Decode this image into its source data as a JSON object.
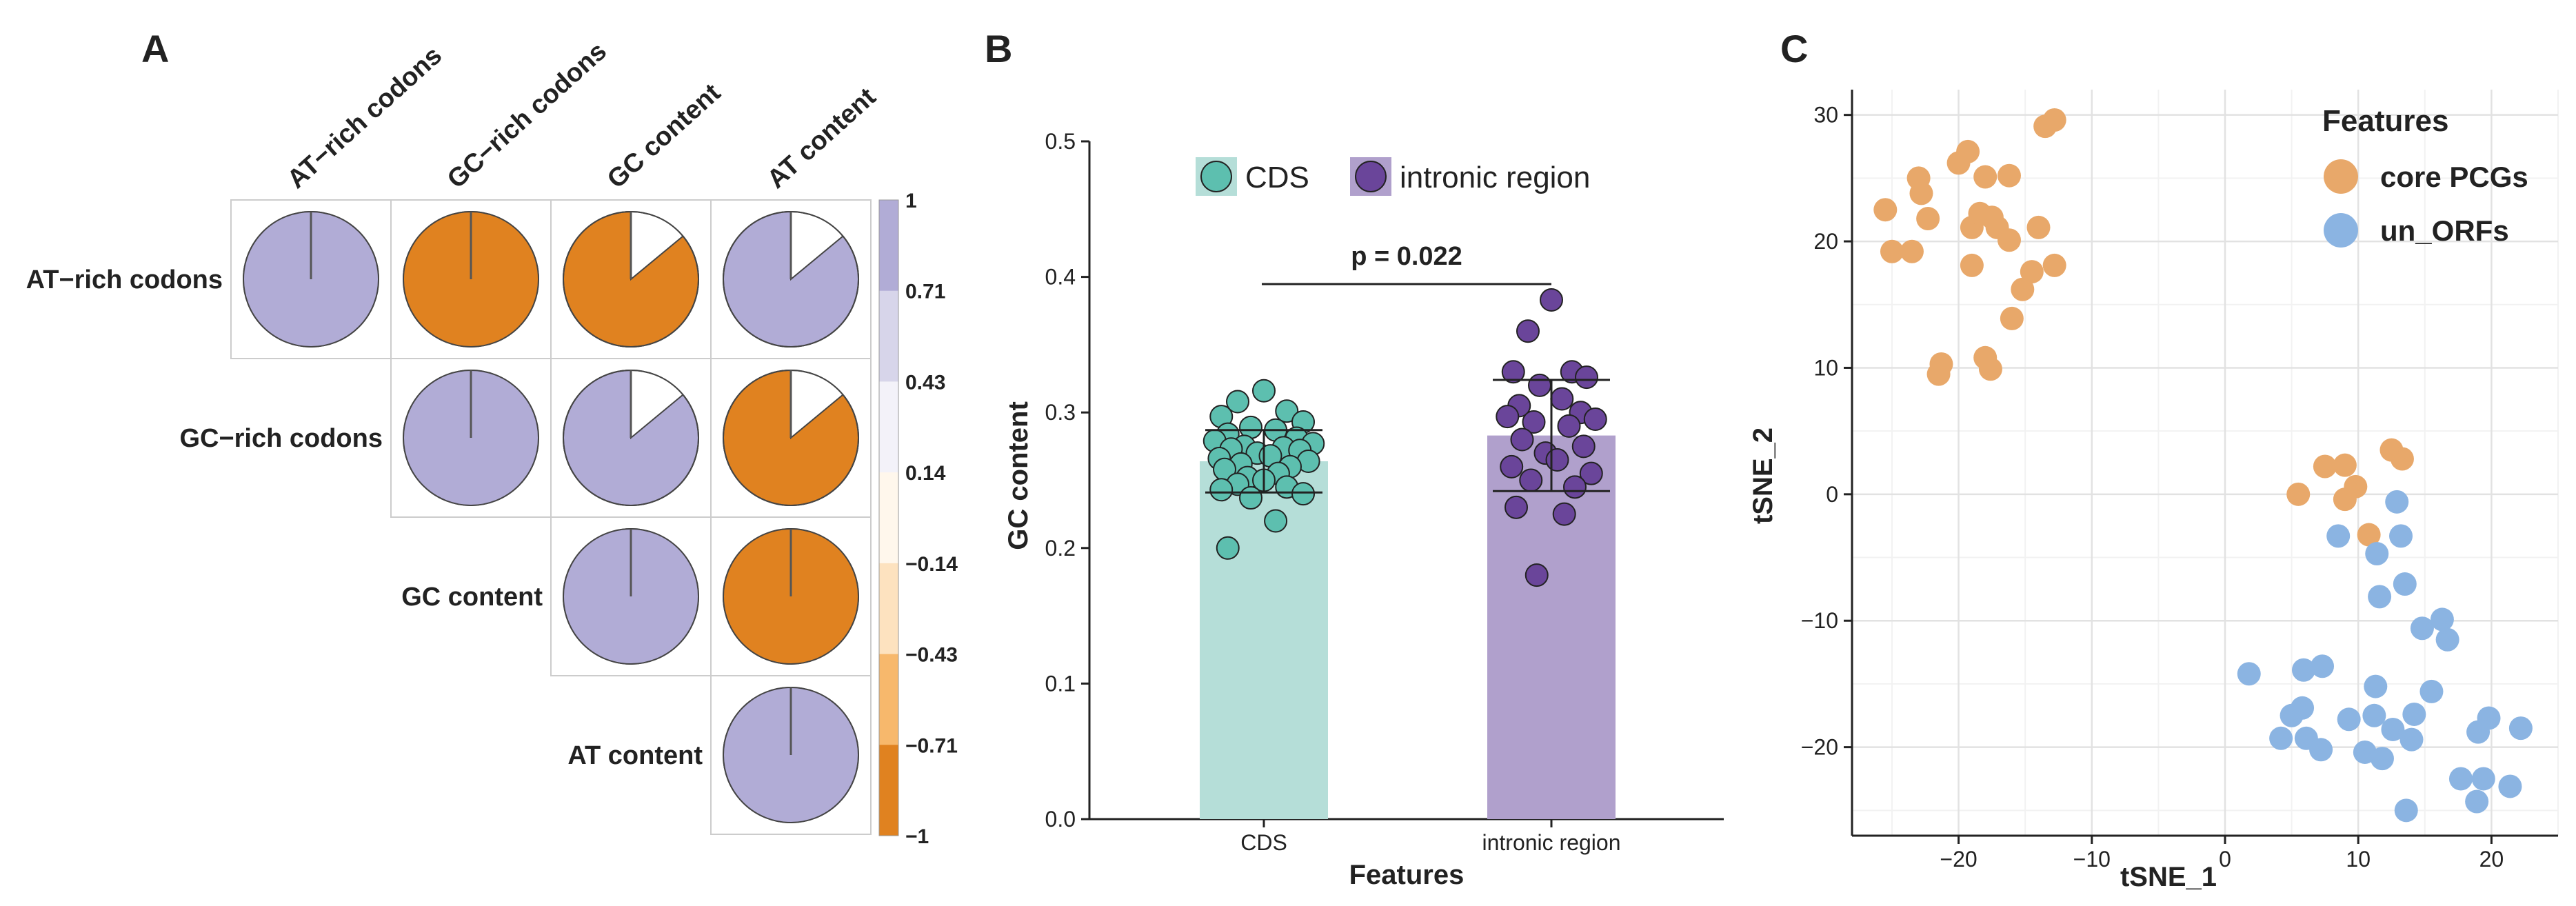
{
  "panel_labels": {
    "a": "A",
    "b": "B",
    "c": "C"
  },
  "colors": {
    "purple": "#b1acd6",
    "orange": "#e08220",
    "cds_bar": "#b5ded8",
    "cds_point": "#5dbfaf",
    "intronic_bar": "#b0a0cc",
    "intronic_point": "#6a459a",
    "core_pcgs": "#e8a86a",
    "un_orfs": "#8bb4e2"
  },
  "chart_data": [
    {
      "type": "heatmap",
      "title": "",
      "variables": [
        "AT−rich codons",
        "GC−rich codons",
        "GC content",
        "AT content"
      ],
      "correlations": [
        [
          1,
          -1,
          -0.86,
          0.86
        ],
        [
          -1,
          1,
          0.86,
          -0.86
        ],
        [
          -0.86,
          0.86,
          1,
          -1
        ],
        [
          0.86,
          -0.86,
          -1,
          1
        ]
      ],
      "colorbar": {
        "ticks": [
          "1",
          "0.71",
          "0.43",
          "0.14",
          "−0.14",
          "−0.43",
          "−0.71",
          "−1"
        ],
        "colors": [
          "#b1acd6",
          "#d7d5ea",
          "#f3f2f9",
          "#fff7ec",
          "#fde2bf",
          "#f7b86c",
          "#e08220"
        ]
      }
    },
    {
      "type": "bar",
      "categories": [
        "CDS",
        "intronic region"
      ],
      "values": [
        0.264,
        0.283
      ],
      "sd": [
        0.023,
        0.041
      ],
      "ylabel": "GC content",
      "xlabel": "Features",
      "ylim": [
        0,
        0.5
      ],
      "yticks": [
        "0.0",
        "0.1",
        "0.2",
        "0.3",
        "0.4",
        "0.5"
      ],
      "legend": [
        "CDS",
        "intronic region"
      ],
      "legend_position": "top",
      "annotation": "p = 0.022",
      "points": {
        "CDS": [
          0.316,
          0.308,
          0.301,
          0.297,
          0.293,
          0.289,
          0.287,
          0.284,
          0.281,
          0.279,
          0.277,
          0.275,
          0.274,
          0.273,
          0.272,
          0.27,
          0.268,
          0.266,
          0.264,
          0.262,
          0.26,
          0.258,
          0.255,
          0.252,
          0.25,
          0.247,
          0.245,
          0.243,
          0.24,
          0.237,
          0.22,
          0.2
        ],
        "intronic region": [
          0.383,
          0.36,
          0.33,
          0.33,
          0.326,
          0.32,
          0.31,
          0.305,
          0.3,
          0.297,
          0.295,
          0.293,
          0.29,
          0.28,
          0.275,
          0.27,
          0.265,
          0.26,
          0.255,
          0.25,
          0.245,
          0.23,
          0.225,
          0.18
        ]
      }
    },
    {
      "type": "scatter",
      "xlabel": "tSNE_1",
      "ylabel": "tSNE_2",
      "xlim": [
        -28,
        25
      ],
      "ylim": [
        -27,
        32
      ],
      "xticks": [
        "−20",
        "−10",
        "0",
        "10",
        "20"
      ],
      "yticks": [
        "30",
        "20",
        "10",
        "0",
        "−10",
        "−20"
      ],
      "grid": true,
      "legend_title": "Features",
      "legend_position": "top-right",
      "series": [
        {
          "name": "core PCGs",
          "points": [
            [
              -25.5,
              22.5
            ],
            [
              -25,
              19.2
            ],
            [
              -23.5,
              19.2
            ],
            [
              -23,
              25
            ],
            [
              -22.8,
              23.8
            ],
            [
              -22.3,
              21.8
            ],
            [
              -21.5,
              9.5
            ],
            [
              -21.3,
              10.3
            ],
            [
              -20,
              26.2
            ],
            [
              -19.3,
              27.1
            ],
            [
              -19,
              21.1
            ],
            [
              -19,
              18.1
            ],
            [
              -18.4,
              22.2
            ],
            [
              -18,
              25.1
            ],
            [
              -18,
              10.8
            ],
            [
              -17.6,
              9.9
            ],
            [
              -17.5,
              21.9
            ],
            [
              -17.1,
              21.1
            ],
            [
              -16.2,
              25.2
            ],
            [
              -16.2,
              20.1
            ],
            [
              -16,
              13.9
            ],
            [
              -15.2,
              16.2
            ],
            [
              -14.5,
              17.6
            ],
            [
              -14,
              21.1
            ],
            [
              -13.5,
              29.1
            ],
            [
              -12.8,
              29.6
            ],
            [
              -12.8,
              18.1
            ],
            [
              5.5,
              0
            ],
            [
              7.5,
              2.2
            ],
            [
              9,
              2.3
            ],
            [
              9,
              -0.4
            ],
            [
              9.8,
              0.6
            ],
            [
              10.8,
              -3.2
            ],
            [
              12.5,
              3.5
            ],
            [
              13.3,
              2.8
            ]
          ]
        },
        {
          "name": "un_ORFs",
          "points": [
            [
              1.8,
              -14.2
            ],
            [
              4.2,
              -19.3
            ],
            [
              5,
              -17.5
            ],
            [
              5.8,
              -16.9
            ],
            [
              5.9,
              -13.9
            ],
            [
              6.1,
              -19.3
            ],
            [
              7.2,
              -20.2
            ],
            [
              7.3,
              -13.6
            ],
            [
              8.5,
              -3.3
            ],
            [
              9.3,
              -17.8
            ],
            [
              10.5,
              -20.4
            ],
            [
              11.2,
              -17.5
            ],
            [
              11.3,
              -15.2
            ],
            [
              11.4,
              -4.7
            ],
            [
              11.6,
              -8.1
            ],
            [
              11.8,
              -20.9
            ],
            [
              12.6,
              -18.6
            ],
            [
              12.9,
              -0.6
            ],
            [
              13.2,
              -3.3
            ],
            [
              13.5,
              -7.1
            ],
            [
              13.6,
              -25
            ],
            [
              14,
              -19.4
            ],
            [
              14.2,
              -17.4
            ],
            [
              14.8,
              -10.6
            ],
            [
              15.5,
              -15.6
            ],
            [
              16.3,
              -9.9
            ],
            [
              16.7,
              -11.5
            ],
            [
              17.7,
              -22.5
            ],
            [
              18.9,
              -24.3
            ],
            [
              19,
              -18.8
            ],
            [
              19.4,
              -22.5
            ],
            [
              19.8,
              -17.7
            ],
            [
              21.4,
              -23.1
            ],
            [
              22.2,
              -18.5
            ]
          ]
        }
      ]
    }
  ]
}
